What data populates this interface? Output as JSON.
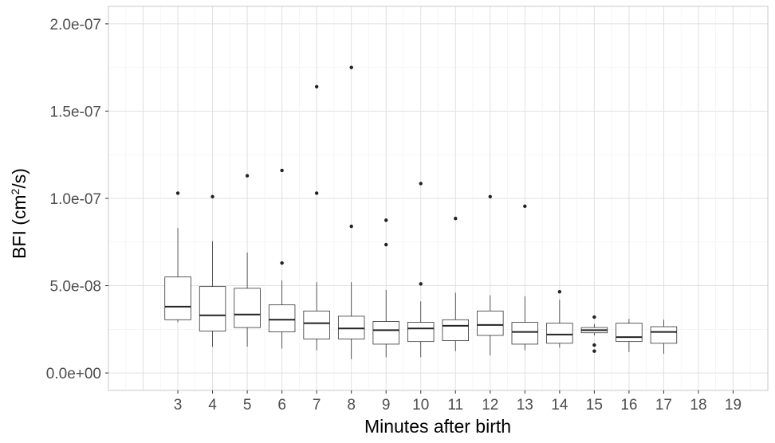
{
  "chart_data": {
    "type": "boxplot",
    "xlabel": "Minutes after birth",
    "ylabel": {
      "prefix": "BFI (cm",
      "sup": "2",
      "suffix": "/s)"
    },
    "ylim": [
      -1e-08,
      2.1e-07
    ],
    "y_ticks": [
      0,
      5e-08,
      1e-07,
      1.5e-07,
      2e-07
    ],
    "y_tick_labels": [
      "0.0e+00",
      "5.0e-08",
      "1.0e-07",
      "1.5e-07",
      "2.0e-07"
    ],
    "categories": [
      "3",
      "4",
      "5",
      "6",
      "7",
      "8",
      "9",
      "10",
      "11",
      "12",
      "13",
      "14",
      "15",
      "16",
      "17",
      "18",
      "19"
    ],
    "x_range": [
      1,
      20
    ],
    "grid": true,
    "boxes": [
      {
        "x": "3",
        "lower_whisker": 2.9e-08,
        "q1": 3.05e-08,
        "median": 3.8e-08,
        "q3": 5.5e-08,
        "upper_whisker": 8.3e-08,
        "outliers": [
          1.03e-07
        ]
      },
      {
        "x": "4",
        "lower_whisker": 1.5e-08,
        "q1": 2.4e-08,
        "median": 3.3e-08,
        "q3": 4.95e-08,
        "upper_whisker": 7.55e-08,
        "outliers": [
          1.01e-07
        ]
      },
      {
        "x": "5",
        "lower_whisker": 1.5e-08,
        "q1": 2.6e-08,
        "median": 3.35e-08,
        "q3": 4.85e-08,
        "upper_whisker": 6.9e-08,
        "outliers": [
          1.13e-07
        ]
      },
      {
        "x": "6",
        "lower_whisker": 1.4e-08,
        "q1": 2.35e-08,
        "median": 3.05e-08,
        "q3": 3.9e-08,
        "upper_whisker": 5.3e-08,
        "outliers": [
          6.3e-08,
          1.16e-07
        ]
      },
      {
        "x": "7",
        "lower_whisker": 1.3e-08,
        "q1": 1.95e-08,
        "median": 2.85e-08,
        "q3": 3.55e-08,
        "upper_whisker": 5.2e-08,
        "outliers": [
          1.03e-07,
          1.64e-07
        ]
      },
      {
        "x": "8",
        "lower_whisker": 8e-09,
        "q1": 1.95e-08,
        "median": 2.55e-08,
        "q3": 3.25e-08,
        "upper_whisker": 5.2e-08,
        "outliers": [
          8.4e-08,
          1.75e-07
        ]
      },
      {
        "x": "9",
        "lower_whisker": 9e-09,
        "q1": 1.65e-08,
        "median": 2.45e-08,
        "q3": 2.95e-08,
        "upper_whisker": 4.75e-08,
        "outliers": [
          7.35e-08,
          8.75e-08
        ]
      },
      {
        "x": "10",
        "lower_whisker": 9e-09,
        "q1": 1.8e-08,
        "median": 2.55e-08,
        "q3": 2.9e-08,
        "upper_whisker": 4.1e-08,
        "outliers": [
          5.1e-08,
          1.085e-07
        ]
      },
      {
        "x": "11",
        "lower_whisker": 1.25e-08,
        "q1": 1.85e-08,
        "median": 2.7e-08,
        "q3": 3.05e-08,
        "upper_whisker": 4.6e-08,
        "outliers": [
          8.85e-08
        ]
      },
      {
        "x": "12",
        "lower_whisker": 1e-08,
        "q1": 2.15e-08,
        "median": 2.75e-08,
        "q3": 3.55e-08,
        "upper_whisker": 4.45e-08,
        "outliers": [
          1.01e-07
        ]
      },
      {
        "x": "13",
        "lower_whisker": 1.3e-08,
        "q1": 1.65e-08,
        "median": 2.35e-08,
        "q3": 2.9e-08,
        "upper_whisker": 4.4e-08,
        "outliers": [
          9.55e-08
        ]
      },
      {
        "x": "14",
        "lower_whisker": 1.45e-08,
        "q1": 1.7e-08,
        "median": 2.2e-08,
        "q3": 2.85e-08,
        "upper_whisker": 4.2e-08,
        "outliers": [
          4.65e-08
        ]
      },
      {
        "x": "15",
        "lower_whisker": 2.15e-08,
        "q1": 2.3e-08,
        "median": 2.45e-08,
        "q3": 2.6e-08,
        "upper_whisker": 2.8e-08,
        "outliers": [
          1.25e-08,
          1.6e-08,
          3.2e-08
        ]
      },
      {
        "x": "16",
        "lower_whisker": 1.2e-08,
        "q1": 1.8e-08,
        "median": 2.05e-08,
        "q3": 2.85e-08,
        "upper_whisker": 3.1e-08,
        "outliers": []
      },
      {
        "x": "17",
        "lower_whisker": 1.1e-08,
        "q1": 1.7e-08,
        "median": 2.35e-08,
        "q3": 2.65e-08,
        "upper_whisker": 3.05e-08,
        "outliers": []
      }
    ]
  }
}
